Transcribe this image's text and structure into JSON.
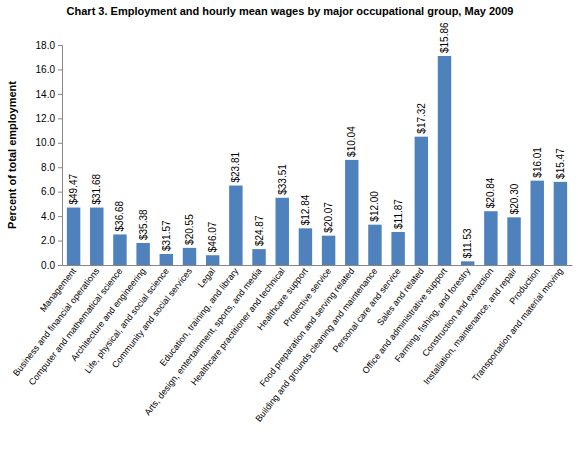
{
  "chart_data": {
    "type": "bar",
    "title": "Chart 3. Employment and hourly mean wages by major occupational group, May 2009",
    "y_label": "Percent of total employment",
    "categories": [
      "Management",
      "Business and financial operations",
      "Computer and mathematical science",
      "Architecture and engineering",
      "Life, physical, and social science",
      "Community and social services",
      "Legal",
      "Education, training, and library",
      "Arts, design, entertainment, sports, and media",
      "Healthcare practitioner and technical",
      "Healthcare support",
      "Protective service",
      "Food preparation and serving related",
      "Building and grounds cleaning and maintenance",
      "Personal care and service",
      "Sales and related",
      "Office and administrative support",
      "Farming, fishing, and forestry",
      "Construction and extraction",
      "Installation, maintenance, and repair",
      "Production",
      "Transportation and material moving"
    ],
    "values": [
      4.7,
      4.7,
      2.5,
      1.8,
      0.9,
      1.4,
      0.8,
      6.5,
      1.3,
      5.5,
      3.0,
      2.4,
      8.6,
      3.3,
      2.7,
      10.5,
      17.1,
      0.3,
      4.4,
      3.9,
      6.9,
      6.8
    ],
    "annotations": [
      "$49.47",
      "$31.68",
      "$36.68",
      "$35.38",
      "$31.57",
      "$20.55",
      "$46.07",
      "$23.81",
      "$24.87",
      "$33.51",
      "$12.84",
      "$20.07",
      "$10.04",
      "$12.00",
      "$11.87",
      "$17.32",
      "$15.86",
      "$11.53",
      "$20.84",
      "$20.30",
      "$16.01",
      "$15.47"
    ],
    "color": "#4f81bd",
    "ylim": [
      0,
      18
    ],
    "yticks": [
      {
        "value": 0,
        "label": "0.0"
      },
      {
        "value": 2,
        "label": "2.0"
      },
      {
        "value": 4,
        "label": "4.0"
      },
      {
        "value": 6,
        "label": "6.0"
      },
      {
        "value": 8,
        "label": "8.0"
      },
      {
        "value": 10,
        "label": "10.0"
      },
      {
        "value": 12,
        "label": "12.0"
      },
      {
        "value": 14,
        "label": "14.0"
      },
      {
        "value": 16,
        "label": "16.0"
      },
      {
        "value": 18,
        "label": "18.0"
      }
    ],
    "grid": false
  }
}
